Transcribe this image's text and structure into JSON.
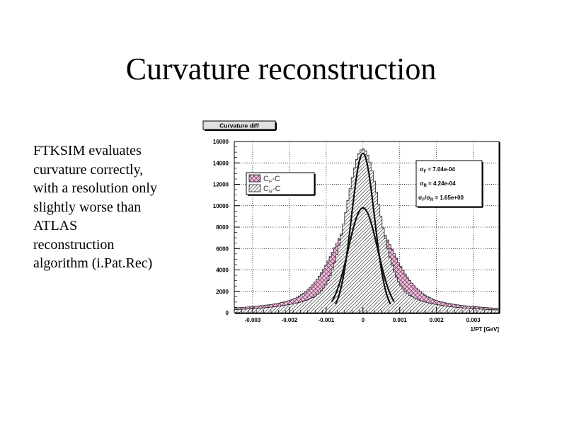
{
  "slide": {
    "title": "Curvature reconstruction",
    "body_lines": [
      "FTKSIM evaluates",
      "curvature correctly,",
      "with a resolution only",
      "slightly worse than",
      "ATLAS",
      "reconstruction",
      "algorithm (i.Pat.Rec)"
    ]
  },
  "chart_data": {
    "type": "histogram",
    "title": "Curvature diff",
    "xlabel": "1/PT [GeV]",
    "ylabel": "",
    "xlim": [
      -0.0035,
      0.0037
    ],
    "ylim": [
      0,
      16000
    ],
    "xticks": [
      -0.003,
      -0.002,
      -0.001,
      0,
      0.001,
      0.002,
      0.003
    ],
    "xtick_labels": [
      "-0.003",
      "-0.002",
      "-0.001",
      "0",
      "0.001",
      "0.002",
      "0.003"
    ],
    "yticks": [
      0,
      2000,
      4000,
      6000,
      8000,
      10000,
      12000,
      14000,
      16000
    ],
    "ytick_labels": [
      "0",
      "2000",
      "4000",
      "6000",
      "8000",
      "10000",
      "12000",
      "14000",
      "16000"
    ],
    "legend": {
      "placement": "top-left",
      "entries": [
        {
          "main": "C",
          "sub": "F",
          "rest": "-C"
        },
        {
          "main": "C",
          "sub": "R",
          "rest": "-C"
        }
      ]
    },
    "stats_box": {
      "placement": "top-right",
      "lines": [
        {
          "sym": "σ",
          "sub": "F",
          "mid": "",
          "sub2": "",
          "text": " = 7.04e-04"
        },
        {
          "sym": "σ",
          "sub": "R",
          "mid": "",
          "sub2": "",
          "text": " = 4.24e-04"
        },
        {
          "sym": "σ",
          "sub": "F",
          "mid": "/σ",
          "sub2": "R",
          "text": " = 1.65e+00"
        }
      ]
    },
    "series": [
      {
        "name": "CF-C",
        "sigma": 0.000704,
        "peak": 9800,
        "fill": "#b7709a",
        "pattern": "cross-hatch"
      },
      {
        "name": "CR-C",
        "sigma": 0.000424,
        "peak": 15300,
        "fill": "#ffffff",
        "pattern": "diagonal-hatch"
      }
    ],
    "fits": [
      {
        "series": "CF-C",
        "sigma": 0.0004,
        "peak": 9800,
        "range": [
          -0.00085,
          0.00085
        ]
      },
      {
        "series": "CR-C",
        "sigma": 0.00031,
        "peak": 14900,
        "range": [
          -0.00075,
          0.00075
        ]
      }
    ],
    "grid": true,
    "colors": {
      "frame": "#000000",
      "grid": "#000000",
      "title_box": "#e0e0e0",
      "box_bg": "#ffffff"
    }
  }
}
